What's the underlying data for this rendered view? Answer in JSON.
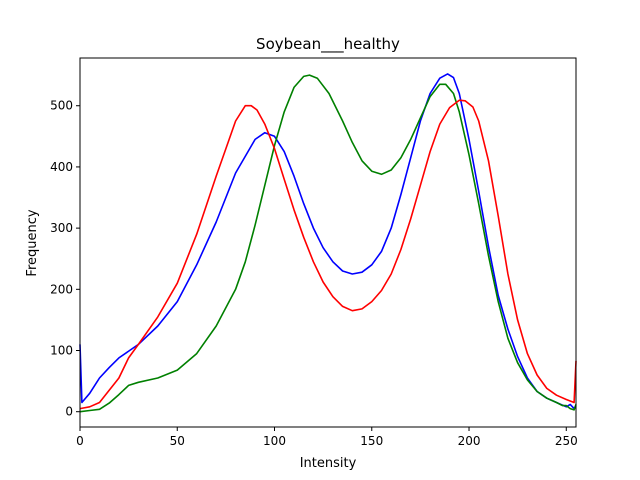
{
  "chart_data": {
    "type": "line",
    "title": "Soybean___healthy",
    "xlabel": "Intensity",
    "ylabel": "Frequency",
    "xlim": [
      0,
      255
    ],
    "ylim": [
      -25,
      578
    ],
    "x_ticks": [
      0,
      50,
      100,
      150,
      200,
      250
    ],
    "y_ticks": [
      0,
      100,
      200,
      300,
      400,
      500
    ],
    "grid": false,
    "legend": "none",
    "series": [
      {
        "color": "#0000ff",
        "points": [
          [
            0,
            110
          ],
          [
            1,
            15
          ],
          [
            5,
            30
          ],
          [
            10,
            55
          ],
          [
            15,
            72
          ],
          [
            20,
            88
          ],
          [
            30,
            110
          ],
          [
            40,
            140
          ],
          [
            50,
            180
          ],
          [
            60,
            240
          ],
          [
            70,
            310
          ],
          [
            80,
            390
          ],
          [
            90,
            445
          ],
          [
            95,
            456
          ],
          [
            100,
            450
          ],
          [
            105,
            425
          ],
          [
            110,
            385
          ],
          [
            115,
            340
          ],
          [
            120,
            300
          ],
          [
            125,
            268
          ],
          [
            130,
            245
          ],
          [
            135,
            230
          ],
          [
            140,
            225
          ],
          [
            145,
            228
          ],
          [
            150,
            240
          ],
          [
            155,
            262
          ],
          [
            160,
            300
          ],
          [
            165,
            355
          ],
          [
            170,
            415
          ],
          [
            175,
            475
          ],
          [
            180,
            520
          ],
          [
            185,
            545
          ],
          [
            189,
            552
          ],
          [
            192,
            546
          ],
          [
            195,
            520
          ],
          [
            200,
            445
          ],
          [
            205,
            360
          ],
          [
            210,
            270
          ],
          [
            215,
            190
          ],
          [
            220,
            135
          ],
          [
            225,
            90
          ],
          [
            230,
            55
          ],
          [
            235,
            33
          ],
          [
            240,
            22
          ],
          [
            245,
            15
          ],
          [
            250,
            8
          ],
          [
            252,
            12
          ],
          [
            254,
            5
          ],
          [
            255,
            10
          ]
        ]
      },
      {
        "color": "#008000",
        "points": [
          [
            0,
            0
          ],
          [
            5,
            2
          ],
          [
            10,
            4
          ],
          [
            15,
            14
          ],
          [
            20,
            28
          ],
          [
            25,
            43
          ],
          [
            30,
            48
          ],
          [
            40,
            55
          ],
          [
            50,
            68
          ],
          [
            60,
            95
          ],
          [
            70,
            140
          ],
          [
            80,
            200
          ],
          [
            85,
            245
          ],
          [
            90,
            305
          ],
          [
            95,
            370
          ],
          [
            100,
            435
          ],
          [
            105,
            490
          ],
          [
            110,
            530
          ],
          [
            115,
            548
          ],
          [
            118,
            550
          ],
          [
            122,
            545
          ],
          [
            128,
            520
          ],
          [
            135,
            475
          ],
          [
            140,
            440
          ],
          [
            145,
            410
          ],
          [
            150,
            393
          ],
          [
            155,
            388
          ],
          [
            160,
            395
          ],
          [
            165,
            415
          ],
          [
            170,
            445
          ],
          [
            175,
            480
          ],
          [
            180,
            515
          ],
          [
            185,
            535
          ],
          [
            188,
            535
          ],
          [
            192,
            520
          ],
          [
            195,
            490
          ],
          [
            200,
            420
          ],
          [
            205,
            340
          ],
          [
            210,
            255
          ],
          [
            215,
            180
          ],
          [
            220,
            120
          ],
          [
            225,
            80
          ],
          [
            230,
            52
          ],
          [
            235,
            33
          ],
          [
            240,
            22
          ],
          [
            245,
            15
          ],
          [
            248,
            10
          ],
          [
            250,
            10
          ],
          [
            252,
            5
          ],
          [
            254,
            3
          ],
          [
            255,
            12
          ]
        ]
      },
      {
        "color": "#ff0000",
        "points": [
          [
            0,
            5
          ],
          [
            5,
            8
          ],
          [
            10,
            15
          ],
          [
            15,
            35
          ],
          [
            20,
            55
          ],
          [
            25,
            88
          ],
          [
            30,
            110
          ],
          [
            40,
            155
          ],
          [
            50,
            210
          ],
          [
            60,
            290
          ],
          [
            70,
            385
          ],
          [
            75,
            430
          ],
          [
            80,
            475
          ],
          [
            85,
            500
          ],
          [
            88,
            500
          ],
          [
            91,
            493
          ],
          [
            95,
            470
          ],
          [
            100,
            430
          ],
          [
            105,
            380
          ],
          [
            110,
            330
          ],
          [
            115,
            285
          ],
          [
            120,
            245
          ],
          [
            125,
            212
          ],
          [
            130,
            188
          ],
          [
            135,
            172
          ],
          [
            140,
            165
          ],
          [
            145,
            168
          ],
          [
            150,
            180
          ],
          [
            155,
            198
          ],
          [
            160,
            225
          ],
          [
            165,
            265
          ],
          [
            170,
            315
          ],
          [
            175,
            370
          ],
          [
            180,
            425
          ],
          [
            185,
            470
          ],
          [
            190,
            497
          ],
          [
            195,
            509
          ],
          [
            198,
            508
          ],
          [
            202,
            498
          ],
          [
            205,
            475
          ],
          [
            210,
            410
          ],
          [
            215,
            320
          ],
          [
            220,
            225
          ],
          [
            225,
            150
          ],
          [
            230,
            95
          ],
          [
            235,
            60
          ],
          [
            240,
            38
          ],
          [
            245,
            27
          ],
          [
            250,
            20
          ],
          [
            254,
            15
          ],
          [
            255,
            83
          ]
        ]
      }
    ]
  }
}
